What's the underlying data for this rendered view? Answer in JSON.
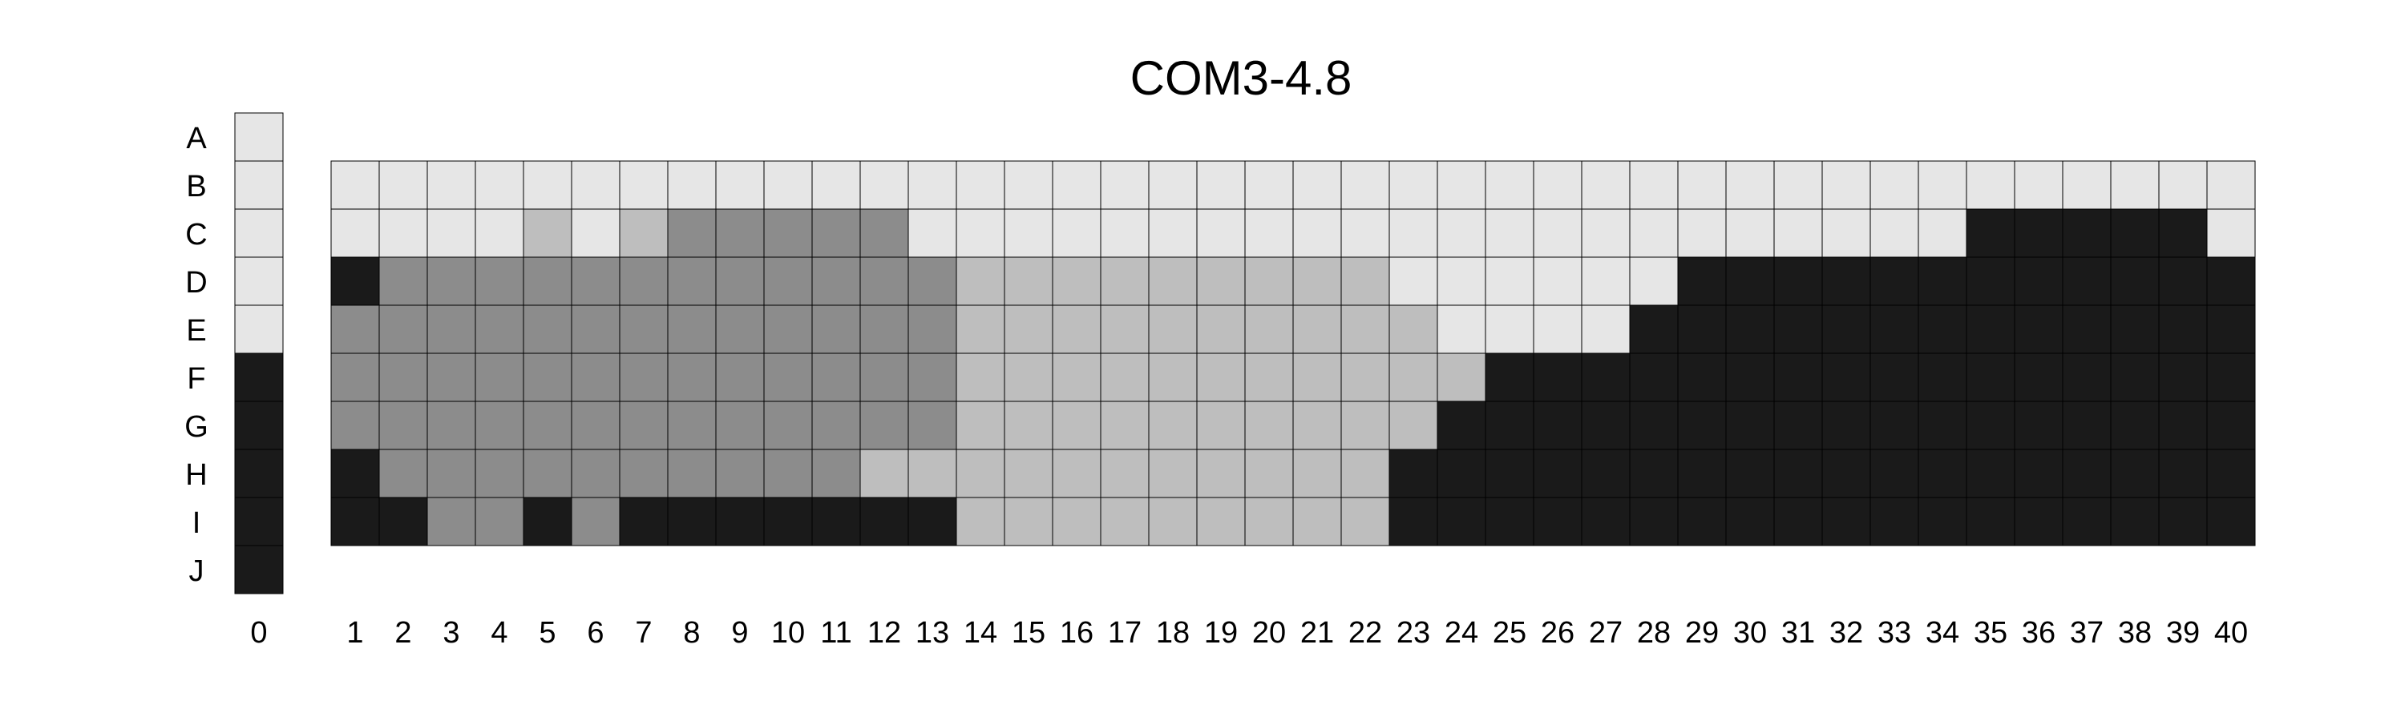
{
  "chart_data": {
    "type": "heatmap",
    "title": "COM3-4.8",
    "rows": [
      "A",
      "B",
      "C",
      "D",
      "E",
      "F",
      "G",
      "H",
      "I",
      "J"
    ],
    "columns": [
      "1",
      "2",
      "3",
      "4",
      "5",
      "6",
      "7",
      "8",
      "9",
      "10",
      "11",
      "12",
      "13",
      "14",
      "15",
      "16",
      "17",
      "18",
      "19",
      "20",
      "21",
      "22",
      "23",
      "24",
      "25",
      "26",
      "27",
      "28",
      "29",
      "30",
      "31",
      "32",
      "33",
      "34",
      "35",
      "36",
      "37",
      "38",
      "39",
      "40"
    ],
    "reference_column": {
      "label": "0",
      "cells": [
        0,
        0,
        0,
        0,
        0,
        3,
        3,
        3,
        3,
        3
      ]
    },
    "grid_rows": [
      "B",
      "C",
      "D",
      "E",
      "F",
      "G",
      "H",
      "I"
    ],
    "grid": [
      "0000000000000000000000000000000000000000",
      "0000101222220000000000000000000000333330",
      "3222222222222111111111000000333333333333",
      "2222222222222111111111100003333333333333",
      "2222222222222111111111113333333333333333",
      "2222222222222111111111133333333333333333",
      "3222222222211111111111333333333333333333",
      "3322323333333111111111333333333333333333"
    ],
    "levels": {
      "0": "#e6e6e6",
      "1": "#bebebe",
      "2": "#8c8c8c",
      "3": "#1a1a1a"
    }
  }
}
